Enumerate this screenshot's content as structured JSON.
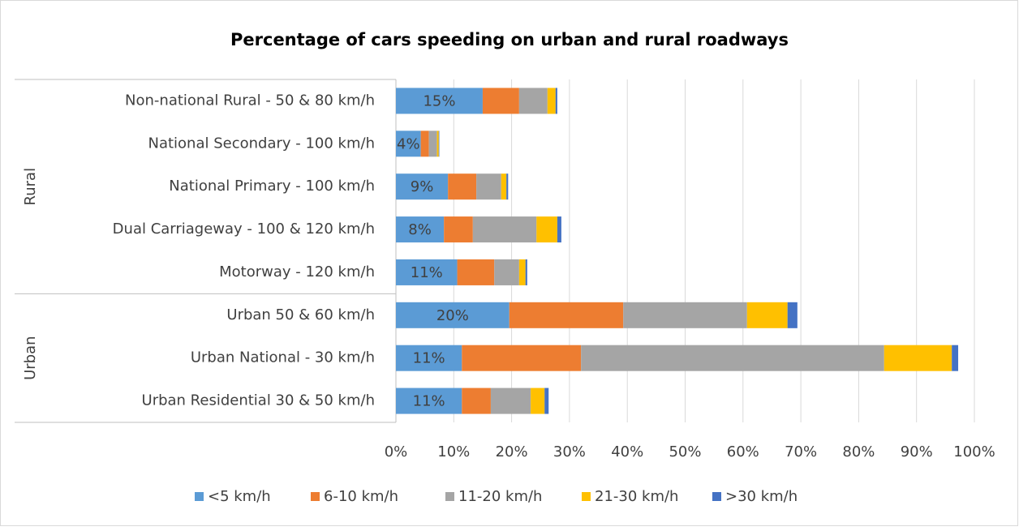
{
  "chart_data": {
    "type": "stacked-bar-horizontal",
    "title": "Percentage of cars speeding on urban and rural roadways",
    "categories": [
      "Non-national Rural - 50 & 80 km/h",
      "National Secondary - 100 km/h",
      "National Primary - 100 km/h",
      "Dual Carriageway - 100 & 120 km/h",
      "Motorway - 120 km/h",
      "Urban 50 & 60 km/h",
      "Urban National - 30 km/h",
      "Urban Residential 30 & 50 km/h"
    ],
    "groups": [
      {
        "name": "Rural",
        "count": 5
      },
      {
        "name": "Urban",
        "count": 3
      }
    ],
    "series": [
      {
        "name": "<5 km/h",
        "color": "#5b9bd5",
        "values": [
          15.0,
          4.3,
          9.0,
          8.3,
          10.6,
          19.6,
          11.4,
          11.4
        ],
        "value_labels": [
          "15%",
          "4%",
          "9%",
          "8%",
          "11%",
          "20%",
          "11%",
          "11%"
        ]
      },
      {
        "name": "6-10 km/h",
        "color": "#ed7d31",
        "values": [
          6.3,
          1.4,
          4.9,
          5.0,
          6.4,
          19.7,
          20.6,
          5.0
        ]
      },
      {
        "name": "11-20 km/h",
        "color": "#a5a5a5",
        "values": [
          4.9,
          1.4,
          4.3,
          11.0,
          4.3,
          21.4,
          52.4,
          6.9
        ]
      },
      {
        "name": "21-30 km/h",
        "color": "#ffc000",
        "values": [
          1.4,
          0.3,
          0.9,
          3.6,
          1.1,
          7.0,
          11.7,
          2.4
        ]
      },
      {
        "name": ">30 km/h",
        "color": "#4472c4",
        "values": [
          0.3,
          0.1,
          0.3,
          0.7,
          0.3,
          1.7,
          1.1,
          0.7
        ]
      }
    ],
    "xlim": [
      0,
      100
    ],
    "xticks": [
      {
        "value": 0,
        "label": "0%"
      },
      {
        "value": 10,
        "label": "10%"
      },
      {
        "value": 20,
        "label": "20%"
      },
      {
        "value": 30,
        "label": "30%"
      },
      {
        "value": 40,
        "label": "40%"
      },
      {
        "value": 50,
        "label": "50%"
      },
      {
        "value": 60,
        "label": "60%"
      },
      {
        "value": 70,
        "label": "70%"
      },
      {
        "value": 80,
        "label": "80%"
      },
      {
        "value": 90,
        "label": "90%"
      },
      {
        "value": 100,
        "label": "100%"
      }
    ],
    "grid": true,
    "legend": "bottom"
  }
}
